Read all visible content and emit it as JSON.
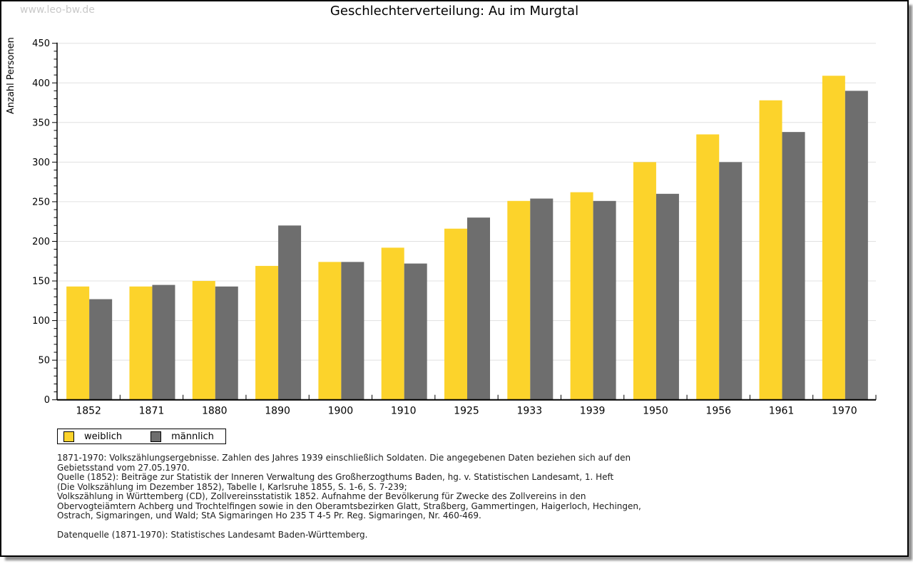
{
  "watermark": "www.leo-bw.de",
  "title": "Geschlechterverteilung: Au im Murgtal",
  "colors": {
    "female": "#FCD32B",
    "male": "#6E6E6E",
    "grid": "#E0E0E0",
    "axis": "#000000",
    "watermark": "#C9C9C9",
    "footer_text": "#1C1C1C"
  },
  "chart_data": {
    "type": "bar",
    "title": "Geschlechterverteilung: Au im Murgtal",
    "xlabel": "",
    "ylabel": "Anzahl Personen",
    "ylim": [
      0,
      450
    ],
    "ytick_step": 50,
    "minor_tick_step": 10,
    "grid": true,
    "legend_position": "bottom-left",
    "categories": [
      "1852",
      "1871",
      "1880",
      "1890",
      "1900",
      "1910",
      "1925",
      "1933",
      "1939",
      "1950",
      "1956",
      "1961",
      "1970"
    ],
    "series": [
      {
        "name": "weiblich",
        "color": "#FCD32B",
        "values": [
          143,
          143,
          150,
          169,
          174,
          192,
          216,
          251,
          262,
          300,
          335,
          378,
          409
        ]
      },
      {
        "name": "männlich",
        "color": "#6E6E6E",
        "values": [
          127,
          145,
          143,
          220,
          174,
          172,
          230,
          254,
          251,
          260,
          300,
          338,
          390
        ]
      }
    ]
  },
  "legend": {
    "items": [
      {
        "label": "weiblich",
        "color": "#FCD32B"
      },
      {
        "label": "männlich",
        "color": "#6E6E6E"
      }
    ]
  },
  "footer": {
    "lines": [
      "1871-1970: Volkszählungsergebnisse. Zahlen des Jahres 1939 einschließlich Soldaten. Die angegebenen Daten beziehen sich auf den",
      "Gebietsstand vom 27.05.1970.",
      "Quelle (1852): Beiträge zur Statistik der Inneren Verwaltung des Großherzogthums Baden, hg. v. Statistischen Landesamt, 1. Heft",
      "(Die Volkszählung im Dezember 1852), Tabelle I, Karlsruhe 1855, S. 1-6, S. 7-239;",
      "Volkszählung in Württemberg (CD), Zollvereinsstatistik 1852. Aufnahme der Bevölkerung für Zwecke des Zollvereins in den",
      "Obervogteiämtern Achberg und Trochtelfingen sowie in den Oberamtsbezirken Glatt, Straßberg, Gammertingen, Haigerloch, Hechingen,",
      "Ostrach, Sigmaringen, und Wald; StA Sigmaringen Ho 235 T 4-5 Pr. Reg. Sigmaringen, Nr. 460-469.",
      "",
      "Datenquelle (1871-1970): Statistisches Landesamt Baden-Württemberg."
    ]
  }
}
